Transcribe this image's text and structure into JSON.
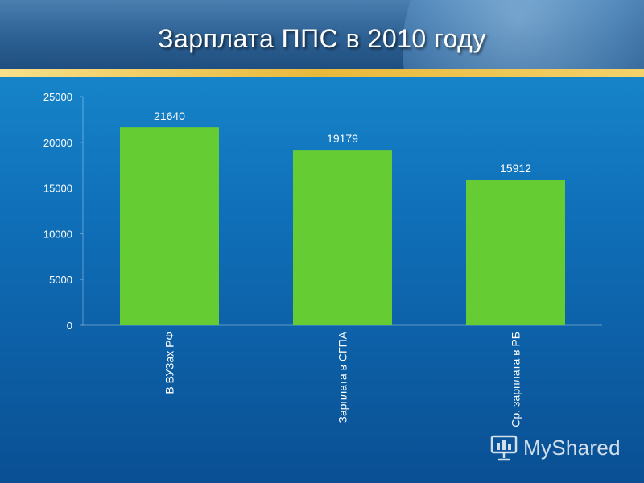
{
  "slide": {
    "title": "Зарплата ППС в 2010 году"
  },
  "watermark": {
    "text": "MyShared"
  },
  "colors": {
    "bar": "#66cc33",
    "axis_text": "#ffffff",
    "header": "#2c5f92",
    "accent_band": "#e8b83a"
  },
  "chart_data": {
    "type": "bar",
    "title": "",
    "xlabel": "",
    "ylabel": "",
    "categories": [
      "В ВУЗах РФ",
      "Зарплата в СГПА",
      "Ср. зарплата в РБ"
    ],
    "values": [
      21640,
      19179,
      15912
    ],
    "data_labels": [
      "21640",
      "19179",
      "15912"
    ],
    "ylim": [
      0,
      25000
    ],
    "yticks": [
      0,
      5000,
      10000,
      15000,
      20000,
      25000
    ],
    "grid": false,
    "legend": "none"
  }
}
